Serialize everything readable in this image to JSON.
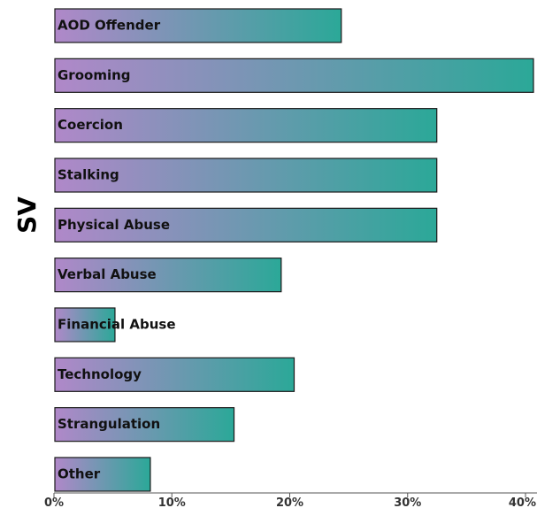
{
  "chart_data": {
    "type": "bar",
    "orientation": "horizontal",
    "title": "",
    "ylabel": "SV",
    "xlabel": "",
    "categories": [
      "AOD Offender",
      "Grooming",
      "Coercion",
      "Stalking",
      "Physical Abuse",
      "Verbal Abuse",
      "Financial Abuse",
      "Technology",
      "Strangulation",
      "Other"
    ],
    "values": [
      24.3,
      40.6,
      32.4,
      32.4,
      32.4,
      19.2,
      5.1,
      20.3,
      15.2,
      8.1
    ],
    "xlim": [
      0,
      40.5
    ],
    "x_ticks": [
      0,
      10,
      20,
      30,
      40
    ],
    "x_tick_labels": [
      "0%",
      "10%",
      "20%",
      "30%",
      "40%"
    ],
    "grid": false,
    "bar_gradient": {
      "start": "#b088c9",
      "end": "#2ba898"
    },
    "bar_outline": "#1a1a1a"
  }
}
